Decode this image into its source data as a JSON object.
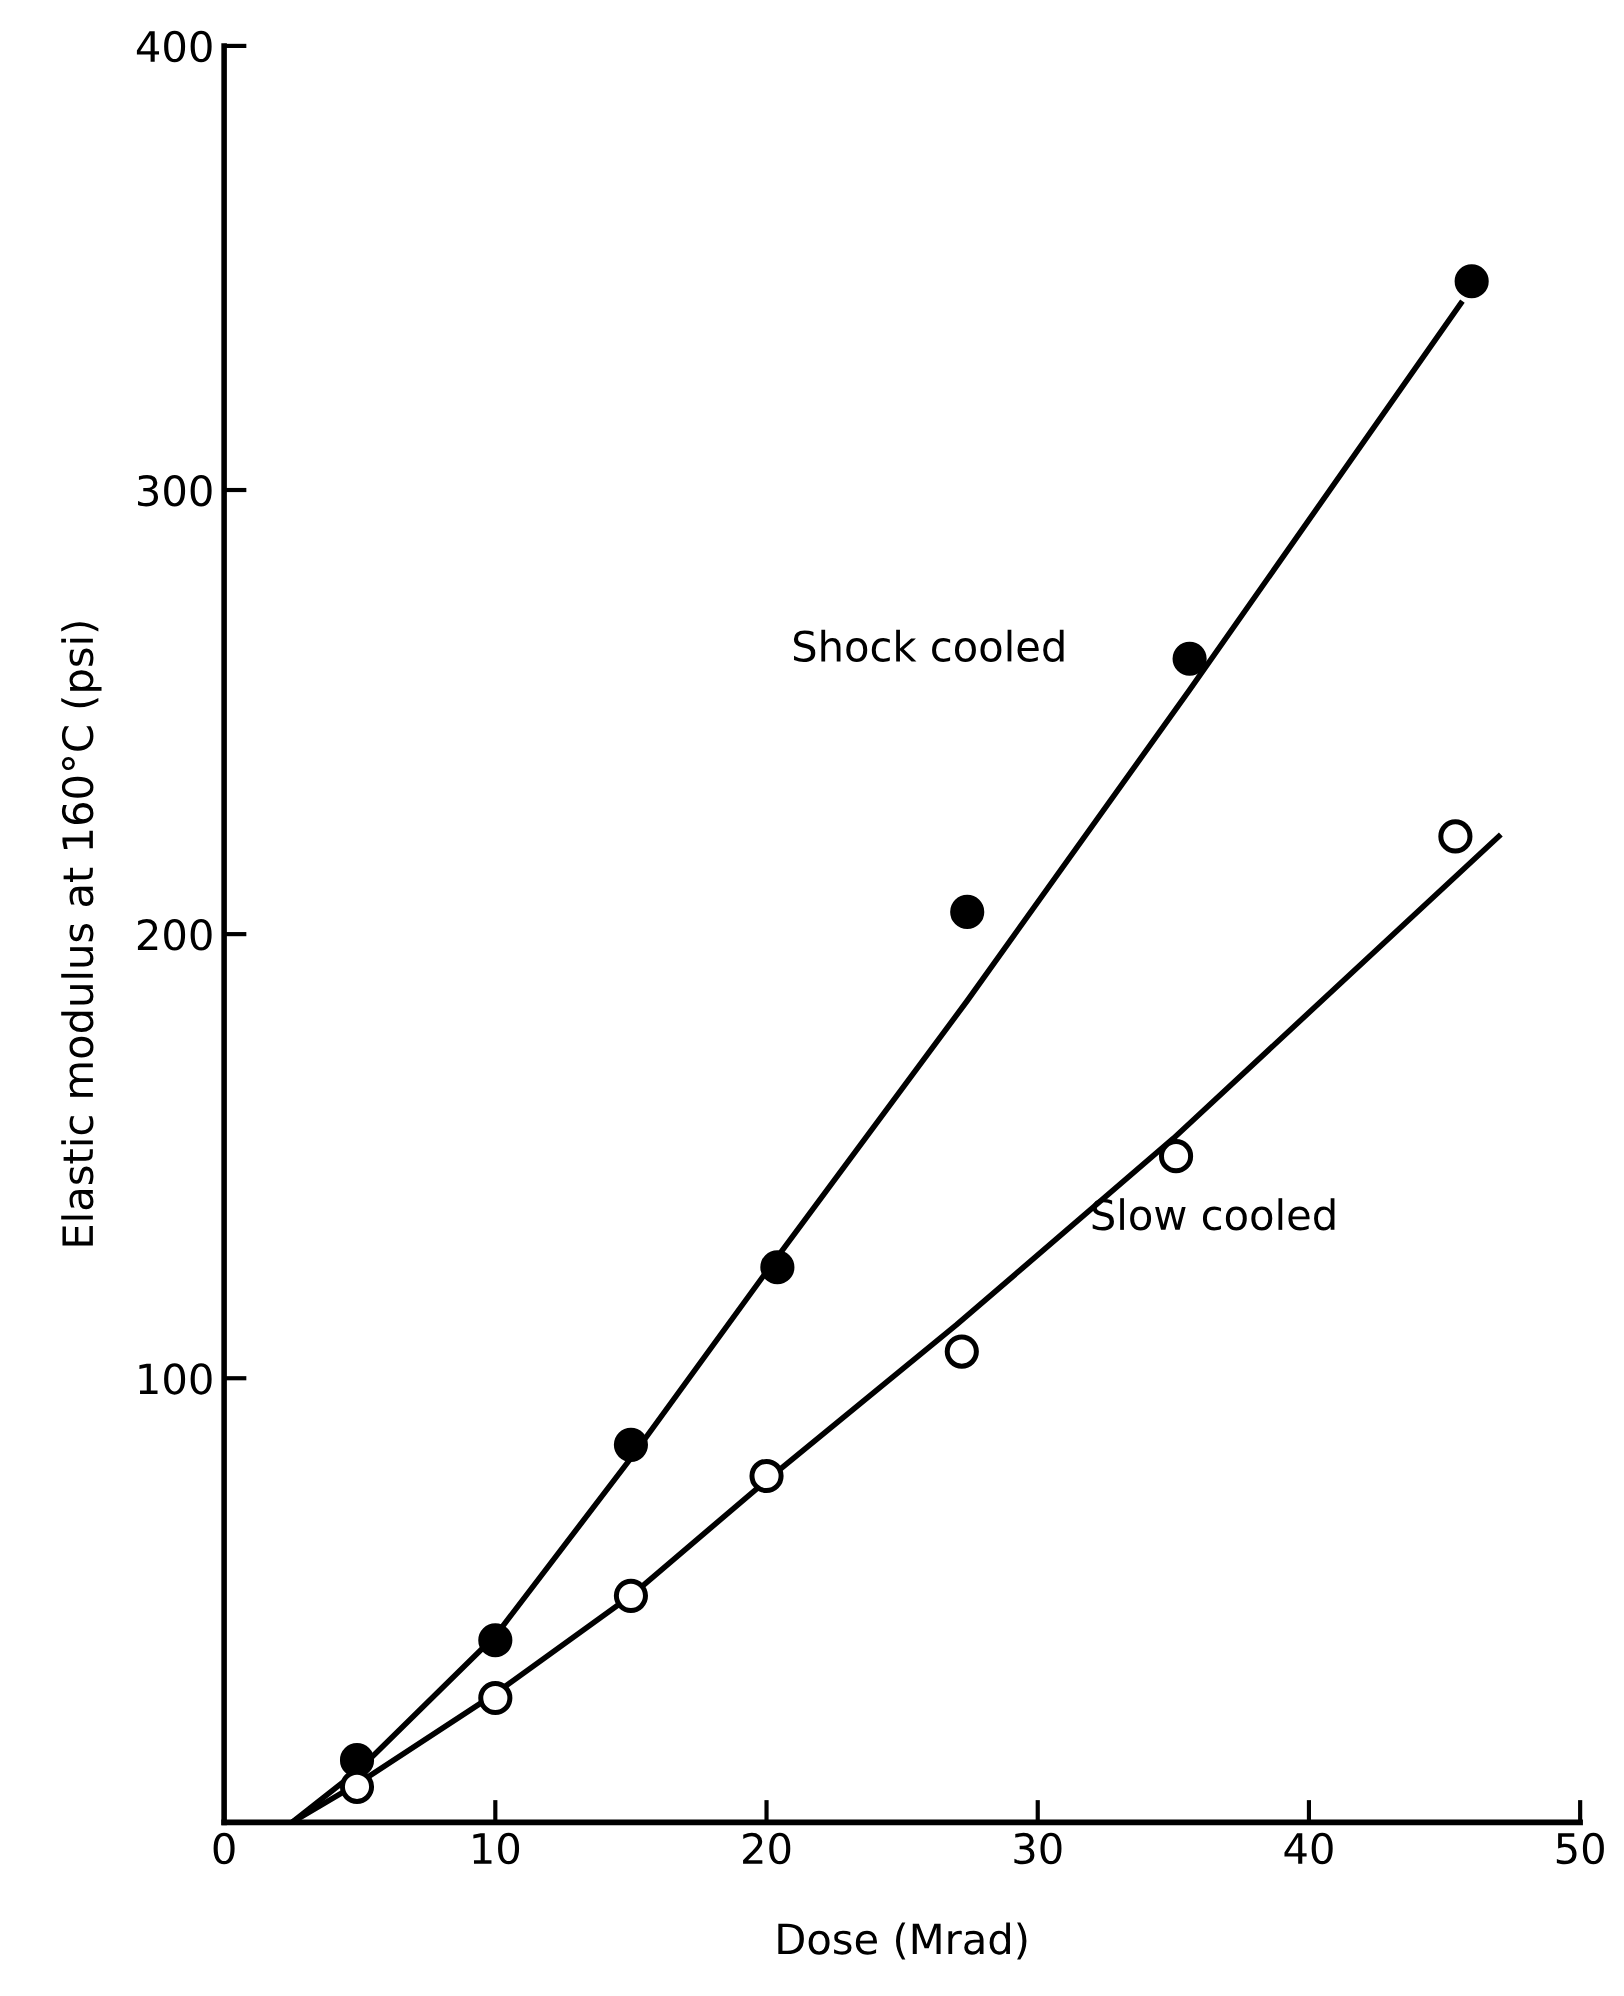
{
  "chart_data": {
    "type": "scatter",
    "xlabel": "Dose (Mrad)",
    "ylabel": "Elastic modulus at 160°C (psi)",
    "xlim": [
      0,
      50
    ],
    "ylim": [
      0,
      400
    ],
    "xticks": [
      0,
      10,
      20,
      30,
      40,
      50
    ],
    "yticks": [
      {
        "value": 0,
        "label": null
      },
      100,
      200,
      300,
      400
    ],
    "grid": false,
    "legend": false,
    "series": [
      {
        "marker": "circle",
        "color": "#000000",
        "x": [
          4.9,
          10,
          15,
          20.4,
          27.4,
          35.6,
          46
        ],
        "values": [
          14,
          41,
          85,
          125,
          205,
          262,
          347
        ]
      },
      {
        "marker": "circle",
        "color": "#ffffff",
        "x": [
          4.9,
          10,
          15,
          20,
          27.2,
          35.1,
          45.4
        ],
        "values": [
          8,
          28,
          51,
          78,
          106,
          150,
          222
        ]
      },
      {
        "type": "line",
        "line_style": "solid",
        "color": "#000000",
        "x": [
          2.5,
          5,
          10,
          15,
          20,
          27.4,
          35.6,
          45.6
        ],
        "values": [
          0,
          12,
          42,
          82,
          124,
          185,
          255,
          342
        ]
      },
      {
        "type": "line",
        "line_style": "solid",
        "color": "#000000",
        "x": [
          2.5,
          5,
          10,
          15,
          20,
          27,
          35,
          47
        ],
        "values": [
          0,
          9,
          29,
          51,
          77,
          112,
          154,
          222
        ]
      }
    ],
    "annotations": [
      "Shock cooled",
      "Slow cooled"
    ]
  }
}
